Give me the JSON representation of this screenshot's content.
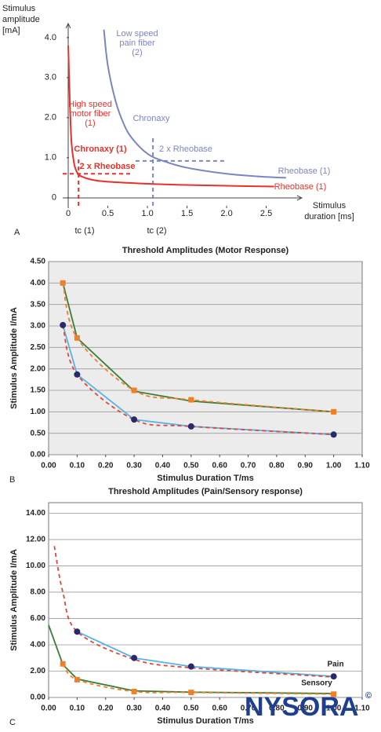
{
  "chart_data": [
    {
      "type": "line",
      "panel_label": "A",
      "ylabel": [
        "Stimulus",
        "amplitude",
        "[mA]"
      ],
      "xlabel": [
        "Stimulus",
        "duration [ms]"
      ],
      "xlim": [
        -0.07,
        2.95
      ],
      "ylim": [
        -0.2,
        4.35
      ],
      "xticks": [
        0,
        0.5,
        {
          "value": 1,
          "label": "1.0"
        },
        1.5,
        {
          "value": 2,
          "label": "2.0"
        },
        2.5
      ],
      "yticks": [
        0,
        {
          "value": 1,
          "label": "1.0"
        },
        {
          "value": 2,
          "label": "2.0"
        },
        {
          "value": 3,
          "label": "3.0"
        },
        {
          "value": 4,
          "label": "4.0"
        }
      ],
      "grid": false,
      "series": [
        {
          "color": "#e8312a",
          "x": [
            0,
            0.02,
            0.04,
            0.07,
            0.1,
            0.15,
            0.3,
            0.5,
            1,
            1.5,
            2,
            2.6
          ],
          "values": [
            3.8,
            2.4,
            1.4,
            0.9,
            0.68,
            0.55,
            0.45,
            0.4,
            0.35,
            0.32,
            0.3,
            0.28
          ]
        },
        {
          "color": "#7b86c0",
          "x": [
            0.45,
            0.5,
            0.6,
            0.7,
            0.8,
            1,
            1.2,
            1.5,
            2,
            2.5,
            2.75
          ],
          "values": [
            4.2,
            3.3,
            2.4,
            1.85,
            1.5,
            1.1,
            0.92,
            0.75,
            0.6,
            0.52,
            0.5
          ]
        }
      ],
      "reference_lines": [
        {
          "x": 0.13,
          "color": "#e8312a"
        },
        {
          "y": 0.6,
          "color": "#e8312a"
        },
        {
          "x": 1.07,
          "color": "#7b86c0"
        },
        {
          "y": 0.92,
          "color": "#7b86c0"
        }
      ],
      "annotations": [
        {
          "lines": [
            "Low speed",
            "pain fiber",
            "(2)"
          ],
          "color": "#7b86c0"
        },
        {
          "lines": [
            "High speed",
            "motor fiber",
            "(1)"
          ],
          "color": "#e8312a"
        },
        {
          "lines": [
            "Chronaxy"
          ],
          "color": "#7b86c0"
        },
        {
          "lines": [
            "2 x Rheobase"
          ],
          "color": "#7b86c0"
        },
        {
          "lines": [
            "Chronaxy (1)"
          ],
          "color": "#e8312a"
        },
        {
          "lines": [
            "2 x Rheobase"
          ],
          "color": "#e8312a"
        },
        {
          "lines": [
            "Rheobase (1)"
          ],
          "color": "#7b86c0"
        },
        {
          "lines": [
            "Rheobase (1)"
          ],
          "color": "#e8312a"
        },
        {
          "lines": [
            "tc (1)"
          ],
          "color": "#222222"
        },
        {
          "lines": [
            "tc (2)"
          ],
          "color": "#222222"
        }
      ]
    },
    {
      "type": "line",
      "panel_label": "B",
      "title": "Threshold Amplitudes (Motor Response)",
      "xlabel": "Stimulus Duration T/ms",
      "ylabel": "Stimulus Amplitude I/mA",
      "xlim": [
        0,
        1.1
      ],
      "ylim": [
        0,
        4.5
      ],
      "xticks": [
        {
          "value": 0,
          "label": "0.00"
        },
        {
          "value": 0.1,
          "label": "0.10"
        },
        {
          "value": 0.2,
          "label": "0.20"
        },
        {
          "value": 0.3,
          "label": "0.30"
        },
        {
          "value": 0.4,
          "label": "0.40"
        },
        {
          "value": 0.5,
          "label": "0.50"
        },
        {
          "value": 0.6,
          "label": "0.60"
        },
        {
          "value": 0.7,
          "label": "0.70"
        },
        {
          "value": 0.8,
          "label": "0.80"
        },
        {
          "value": 0.9,
          "label": "0.90"
        },
        {
          "value": 1,
          "label": "1.00"
        },
        {
          "value": 1.1,
          "label": "1.10"
        }
      ],
      "yticks": [
        {
          "value": 0,
          "label": "0.00"
        },
        {
          "value": 0.5,
          "label": "0.50"
        },
        {
          "value": 1,
          "label": "1.00"
        },
        {
          "value": 1.5,
          "label": "1.50"
        },
        {
          "value": 2,
          "label": "2.00"
        },
        {
          "value": 2.5,
          "label": "2.50"
        },
        {
          "value": 3,
          "label": "3.00"
        },
        {
          "value": 3.5,
          "label": "3.50"
        },
        {
          "value": 4,
          "label": "4.00"
        },
        {
          "value": 4.5,
          "label": "4.50"
        }
      ],
      "grid": true,
      "background": "#ececec",
      "series": [
        {
          "color": "#3a7d3a",
          "x": [
            0.05,
            0.1,
            0.3,
            0.5,
            1
          ],
          "values": [
            4.0,
            2.72,
            1.48,
            1.25,
            1.0
          ]
        },
        {
          "color": "#f07f2a",
          "dash": true,
          "marker": "square",
          "marker_color": "#f07f2a",
          "x": [
            0.05,
            0.1,
            0.3,
            0.5,
            1
          ],
          "values": [
            4.0,
            2.72,
            1.5,
            1.28,
            1.0
          ]
        },
        {
          "color": "#55b4e6",
          "x": [
            0.05,
            0.1,
            0.3,
            0.5,
            1
          ],
          "values": [
            3.02,
            1.87,
            0.82,
            0.66,
            0.47
          ]
        },
        {
          "color": "#e0473a",
          "dash": true,
          "marker": "circle",
          "marker_color": "#2a2a6a",
          "x": [
            0.05,
            0.1,
            0.3,
            0.5,
            1
          ],
          "values": [
            3.02,
            1.87,
            0.82,
            0.66,
            0.47
          ]
        }
      ]
    },
    {
      "type": "line",
      "panel_label": "C",
      "title": "Threshold Amplitudes (Pain/Sensory response)",
      "xlabel": "Stimulus Duration T/ms",
      "ylabel": "Stimulus Amplitude I/mA",
      "xlim": [
        0,
        1.1
      ],
      "ylim": [
        0,
        14.8
      ],
      "xticks": [
        {
          "value": 0,
          "label": "0.00"
        },
        {
          "value": 0.1,
          "label": "0.10"
        },
        {
          "value": 0.2,
          "label": "0.20"
        },
        {
          "value": 0.3,
          "label": "0.30"
        },
        {
          "value": 0.4,
          "label": "0.40"
        },
        {
          "value": 0.5,
          "label": "0.50"
        },
        {
          "value": 0.6,
          "label": "0.60"
        },
        {
          "value": 0.7,
          "label": "0.70"
        },
        {
          "value": 0.8,
          "label": "0.80"
        },
        {
          "value": 0.9,
          "label": "0.90"
        },
        {
          "value": 1,
          "label": "1.00"
        },
        {
          "value": 1.1,
          "label": "1.10"
        }
      ],
      "yticks": [
        {
          "value": 0,
          "label": "0.00"
        },
        {
          "value": 2,
          "label": "2.00"
        },
        {
          "value": 4,
          "label": "4.00"
        },
        {
          "value": 6,
          "label": "6.00"
        },
        {
          "value": 8,
          "label": "8.00"
        },
        {
          "value": 10,
          "label": "10.00"
        },
        {
          "value": 12,
          "label": "12.00"
        },
        {
          "value": 14,
          "label": "14.00"
        }
      ],
      "grid": true,
      "background": "#ffffff",
      "series": [
        {
          "color": "#55b4e6",
          "marker": "circle",
          "marker_color": "#2a2a6a",
          "x": [
            0.1,
            0.3,
            0.5,
            1
          ],
          "values": [
            5.0,
            3.0,
            2.35,
            1.6
          ]
        },
        {
          "color": "#e0473a",
          "dash": true,
          "x": [
            0.02,
            0.05,
            0.1,
            0.3,
            0.5,
            1
          ],
          "values": [
            11.5,
            8.0,
            5.0,
            2.9,
            2.25,
            1.55
          ]
        },
        {
          "color": "#3a7d3a",
          "x": [
            0,
            0.05,
            0.1,
            0.3,
            0.5,
            1
          ],
          "values": [
            5.5,
            2.5,
            1.4,
            0.5,
            0.4,
            0.3
          ]
        },
        {
          "color": "#f07f2a",
          "dash": true,
          "marker": "square",
          "marker_color": "#f07f2a",
          "x": [
            0.05,
            0.1,
            0.3,
            0.5,
            1
          ],
          "values": [
            2.55,
            1.35,
            0.45,
            0.38,
            0.25
          ]
        }
      ],
      "annotations": [
        {
          "lines": [
            "Pain"
          ],
          "color": "#222222"
        },
        {
          "lines": [
            "Sensory"
          ],
          "color": "#222222"
        }
      ]
    }
  ],
  "logo": {
    "text": "NYSORA",
    "mark": "©"
  }
}
